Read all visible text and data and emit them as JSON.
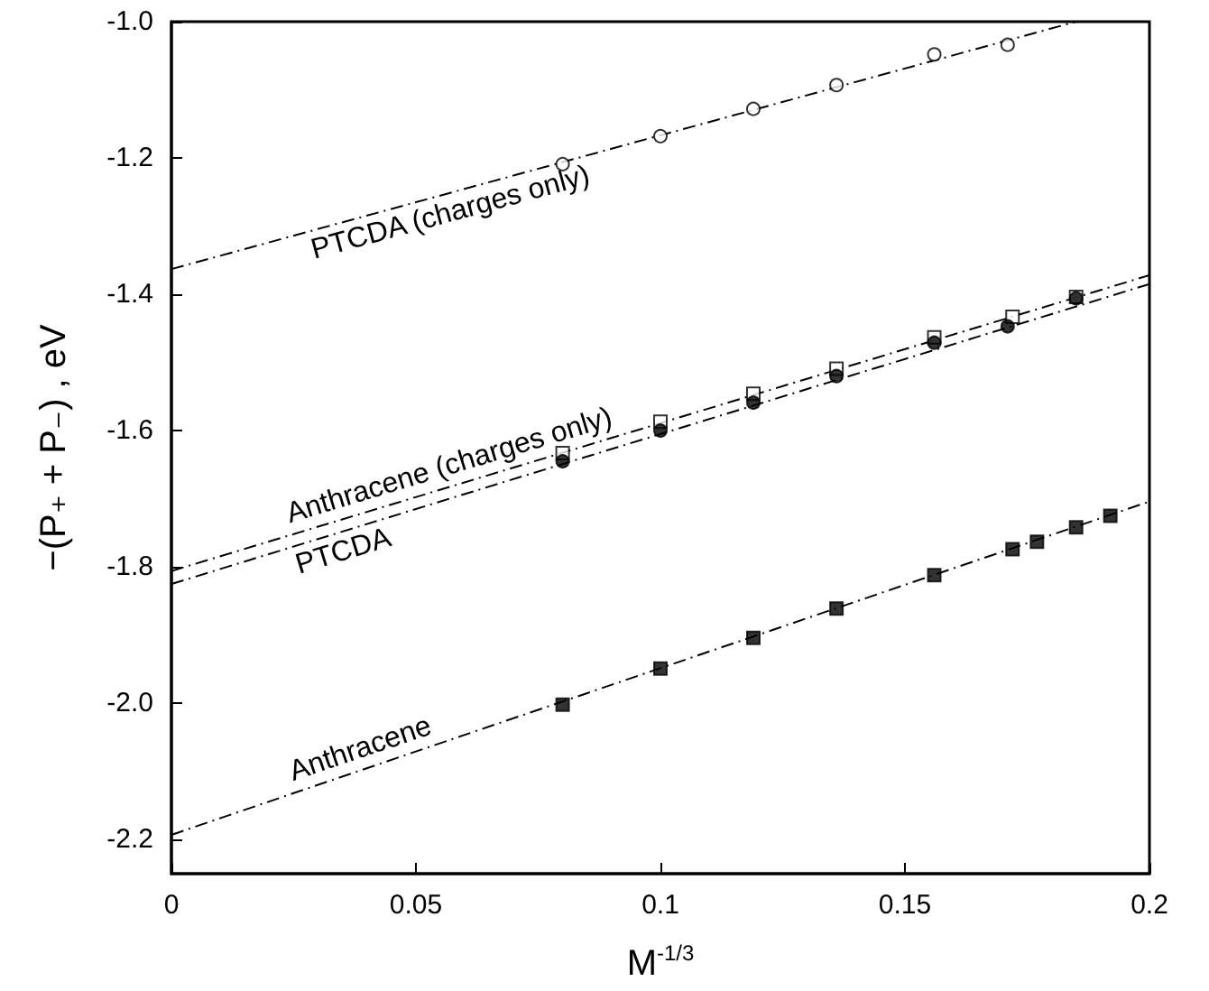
{
  "chart_data": {
    "type": "scatter",
    "xlabel": "M$^{-1/3}$",
    "ylabel": "−(P₊ + P₋) , eV",
    "xlim": [
      0,
      0.2
    ],
    "xticks": [
      0,
      0.05,
      0.1,
      0.15,
      0.2
    ],
    "ylim": [
      -2.25,
      -1.0
    ],
    "yticks": [
      {
        "value": -2.2,
        "label": "-2.2"
      },
      {
        "value": -2.0,
        "label": "-2.0"
      },
      {
        "value": -1.8,
        "label": "-1.8"
      },
      {
        "value": -1.6,
        "label": "-1.6"
      },
      {
        "value": -1.4,
        "label": "-1.4"
      },
      {
        "value": -1.2,
        "label": "-1.2"
      },
      {
        "value": -1.0,
        "label": "-1.0"
      }
    ],
    "grid": false,
    "legend": false,
    "series": [
      {
        "marker": "circle",
        "color": "#ffffff",
        "x": [
          0.08,
          0.1,
          0.119,
          0.136,
          0.156,
          0.171
        ],
        "values": [
          -1.209,
          -1.168,
          -1.128,
          -1.093,
          -1.048,
          -1.034
        ]
      },
      {
        "marker": "square",
        "color": "#ffffff",
        "x": [
          0.08,
          0.1,
          0.119,
          0.136,
          0.156,
          0.172,
          0.185
        ],
        "values": [
          -1.633,
          -1.587,
          -1.546,
          -1.509,
          -1.463,
          -1.433,
          -1.404
        ]
      },
      {
        "marker": "circle",
        "color": "#000000",
        "x": [
          0.08,
          0.1,
          0.119,
          0.136,
          0.156,
          0.171,
          0.185
        ],
        "values": [
          -1.645,
          -1.6,
          -1.559,
          -1.52,
          -1.471,
          -1.447,
          -1.406
        ]
      },
      {
        "marker": "square",
        "color": "#000000",
        "x": [
          0.08,
          0.1,
          0.119,
          0.136,
          0.156,
          0.172,
          0.177,
          0.185,
          0.192
        ],
        "values": [
          -2.002,
          -1.949,
          -1.904,
          -1.861,
          -1.812,
          -1.774,
          -1.763,
          -1.742,
          -1.725
        ]
      },
      {
        "type": "line",
        "name": "PTCDA (charges only)",
        "color": "#000000",
        "line_style": "dashed",
        "marker": "none",
        "x": [
          0,
          0.185
        ],
        "values": [
          -1.363,
          -1.0
        ]
      },
      {
        "type": "line",
        "name": "Anthracene (charges only)",
        "color": "#000000",
        "line_style": "dashed",
        "marker": "none",
        "x": [
          0,
          0.2
        ],
        "values": [
          -1.806,
          -1.372
        ]
      },
      {
        "type": "line",
        "name": "PTCDA",
        "color": "#000000",
        "line_style": "dashed",
        "marker": "none",
        "x": [
          0,
          0.2
        ],
        "values": [
          -1.825,
          -1.385
        ]
      },
      {
        "type": "line",
        "name": "Anthracene",
        "color": "#000000",
        "line_style": "dashed",
        "marker": "none",
        "x": [
          0,
          0.2
        ],
        "values": [
          -2.193,
          -1.704
        ]
      }
    ]
  }
}
